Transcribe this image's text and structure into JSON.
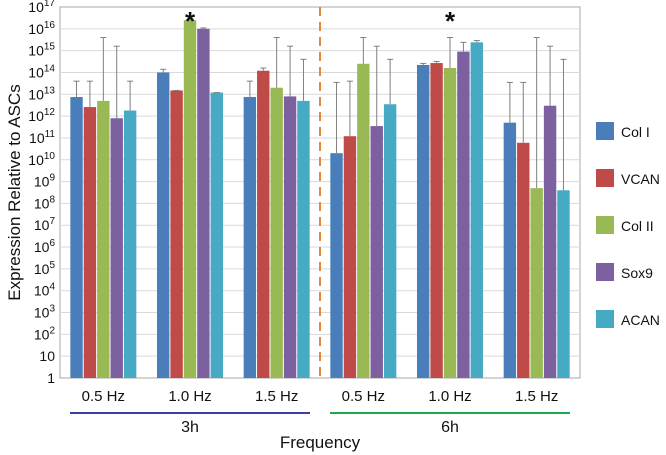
{
  "chart_data": {
    "type": "bar",
    "title": "",
    "xlabel": "Frequency",
    "ylabel": "Expression Relative to ASCs",
    "yscale": "log",
    "ylim_exponents": [
      0,
      17
    ],
    "y_tick_labels": [
      "1",
      "10",
      "10^2",
      "10^3",
      "10^4",
      "10^5",
      "10^6",
      "10^7",
      "10^8",
      "10^9",
      "10^10",
      "10^11",
      "10^12",
      "10^13",
      "10^14",
      "10^15",
      "10^16",
      "10^17"
    ],
    "categories": [
      "0.5 Hz",
      "1.0 Hz",
      "1.5 Hz",
      "0.5 Hz",
      "1.0 Hz",
      "1.5 Hz"
    ],
    "groups": [
      {
        "label": "3h",
        "categories": [
          0,
          1,
          2
        ],
        "color": "#3B3FA8"
      },
      {
        "label": "6h",
        "categories": [
          3,
          4,
          5
        ],
        "color": "#1BAA4A"
      }
    ],
    "divider_after_category": 2,
    "legend_position": "right",
    "series": [
      {
        "name": "Col I",
        "color": "#4A7EBB",
        "values": [
          7500000000000.0,
          100000000000000.0,
          7500000000000.0,
          20000000000.0,
          220000000000000.0,
          500000000000.0
        ],
        "err_upper": [
          40000000000000.0,
          140000000000000.0,
          40000000000000.0,
          35000000000000.0,
          260000000000000.0,
          35000000000000.0
        ]
      },
      {
        "name": "VCAN",
        "color": "#BE4B48",
        "values": [
          2600000000000.0,
          15000000000000.0,
          120000000000000.0,
          120000000000.0,
          270000000000000.0,
          60000000000.0
        ],
        "err_upper": [
          40000000000000.0,
          15000000000000.0,
          160000000000000.0,
          40000000000000.0,
          320000000000000.0,
          35000000000000.0
        ]
      },
      {
        "name": "Col II",
        "color": "#98B954",
        "values": [
          5000000000000.0,
          2.5e+16,
          20000000000000.0,
          250000000000000.0,
          160000000000000.0,
          500000000.0
        ],
        "err_upper": [
          4000000000000000.0,
          2.8e+16,
          4000000000000000.0,
          4000000000000000.0,
          4000000000000000.0,
          4000000000000000.0
        ]
      },
      {
        "name": "Sox9",
        "color": "#7D60A0",
        "values": [
          800000000000.0,
          1e+16,
          8000000000000.0,
          350000000000.0,
          900000000000000.0,
          3000000000000.0
        ],
        "err_upper": [
          1600000000000000.0,
          1.1e+16,
          1600000000000000.0,
          1600000000000000.0,
          2400000000000000.0,
          1600000000000000.0
        ]
      },
      {
        "name": "ACAN",
        "color": "#46AAC5",
        "values": [
          1800000000000.0,
          12000000000000.0,
          5000000000000.0,
          3500000000000.0,
          2400000000000000.0,
          400000000.0
        ],
        "err_upper": [
          40000000000000.0,
          12000000000000.0,
          400000000000000.0,
          400000000000000.0,
          2900000000000000.0,
          400000000000000.0
        ]
      }
    ],
    "annotations": [
      {
        "text": "*",
        "category": 1
      },
      {
        "text": "*",
        "category": 4
      }
    ]
  }
}
